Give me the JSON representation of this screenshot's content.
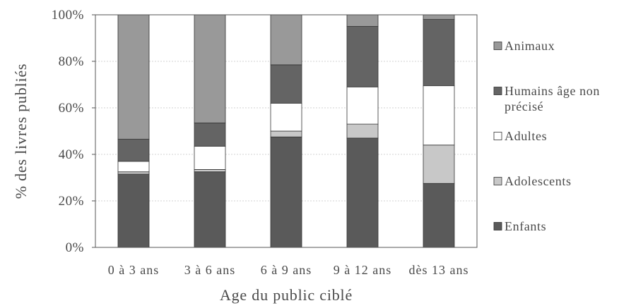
{
  "chart_data": {
    "type": "bar",
    "stacked": true,
    "percent": true,
    "categories": [
      "0 à 3 ans",
      "3 à 6 ans",
      "6 à 9 ans",
      "9 à 12 ans",
      "dès 13 ans"
    ],
    "series": [
      {
        "name": "Enfants",
        "color": "#5a5a5a",
        "values": [
          31.5,
          32.5,
          47.5,
          47,
          27.5
        ]
      },
      {
        "name": "Adolescents",
        "color": "#c8c8c8",
        "values": [
          1,
          1,
          2.5,
          6,
          16.5
        ]
      },
      {
        "name": "Adultes",
        "color": "#ffffff",
        "values": [
          4.5,
          10,
          12,
          16,
          25.5
        ]
      },
      {
        "name": "Humains âge non précisé",
        "color": "#646464",
        "values": [
          9.5,
          10,
          16.5,
          26,
          28.5
        ]
      },
      {
        "name": "Animaux",
        "color": "#999999",
        "values": [
          53.5,
          46.5,
          21.5,
          5,
          2
        ]
      }
    ],
    "xlabel": "Age du public ciblé",
    "ylabel": "% des livres publiés",
    "ylim": [
      0,
      100
    ],
    "yticks": [
      0,
      20,
      40,
      60,
      80,
      100
    ],
    "ytick_labels": [
      "0%",
      "20%",
      "40%",
      "60%",
      "80%",
      "100%"
    ],
    "grid": true,
    "legend": "right"
  }
}
